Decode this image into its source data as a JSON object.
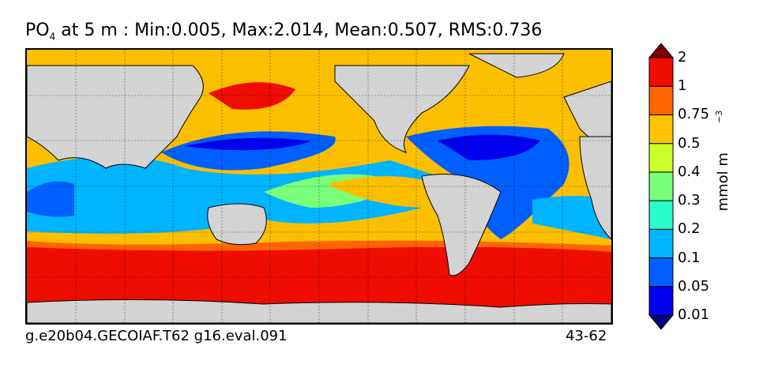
{
  "title": {
    "species": "PO",
    "species_sub": "4",
    "rest": " at 5 m : Min:0.005, Max:2.014, Mean:0.507, RMS:0.736"
  },
  "footer": {
    "run_name": "g.e20b04.GECOIAF.T62 g16.eval.091",
    "years": "43-62"
  },
  "colorbar": {
    "units_base": "mmol m",
    "units_exp": "−3",
    "levels": [
      "0.01",
      "0.05",
      "0.1",
      "0.2",
      "0.3",
      "0.4",
      "0.5",
      "0.75",
      "1",
      "2"
    ],
    "colors": [
      "#00007f",
      "#0000ee",
      "#0060ff",
      "#00b4ff",
      "#2affca",
      "#79ff79",
      "#caff2a",
      "#ffc400",
      "#ff6400",
      "#ee0d00",
      "#7f0000"
    ]
  },
  "map": {
    "land_color": "#d3d3d3",
    "grid": true
  }
}
